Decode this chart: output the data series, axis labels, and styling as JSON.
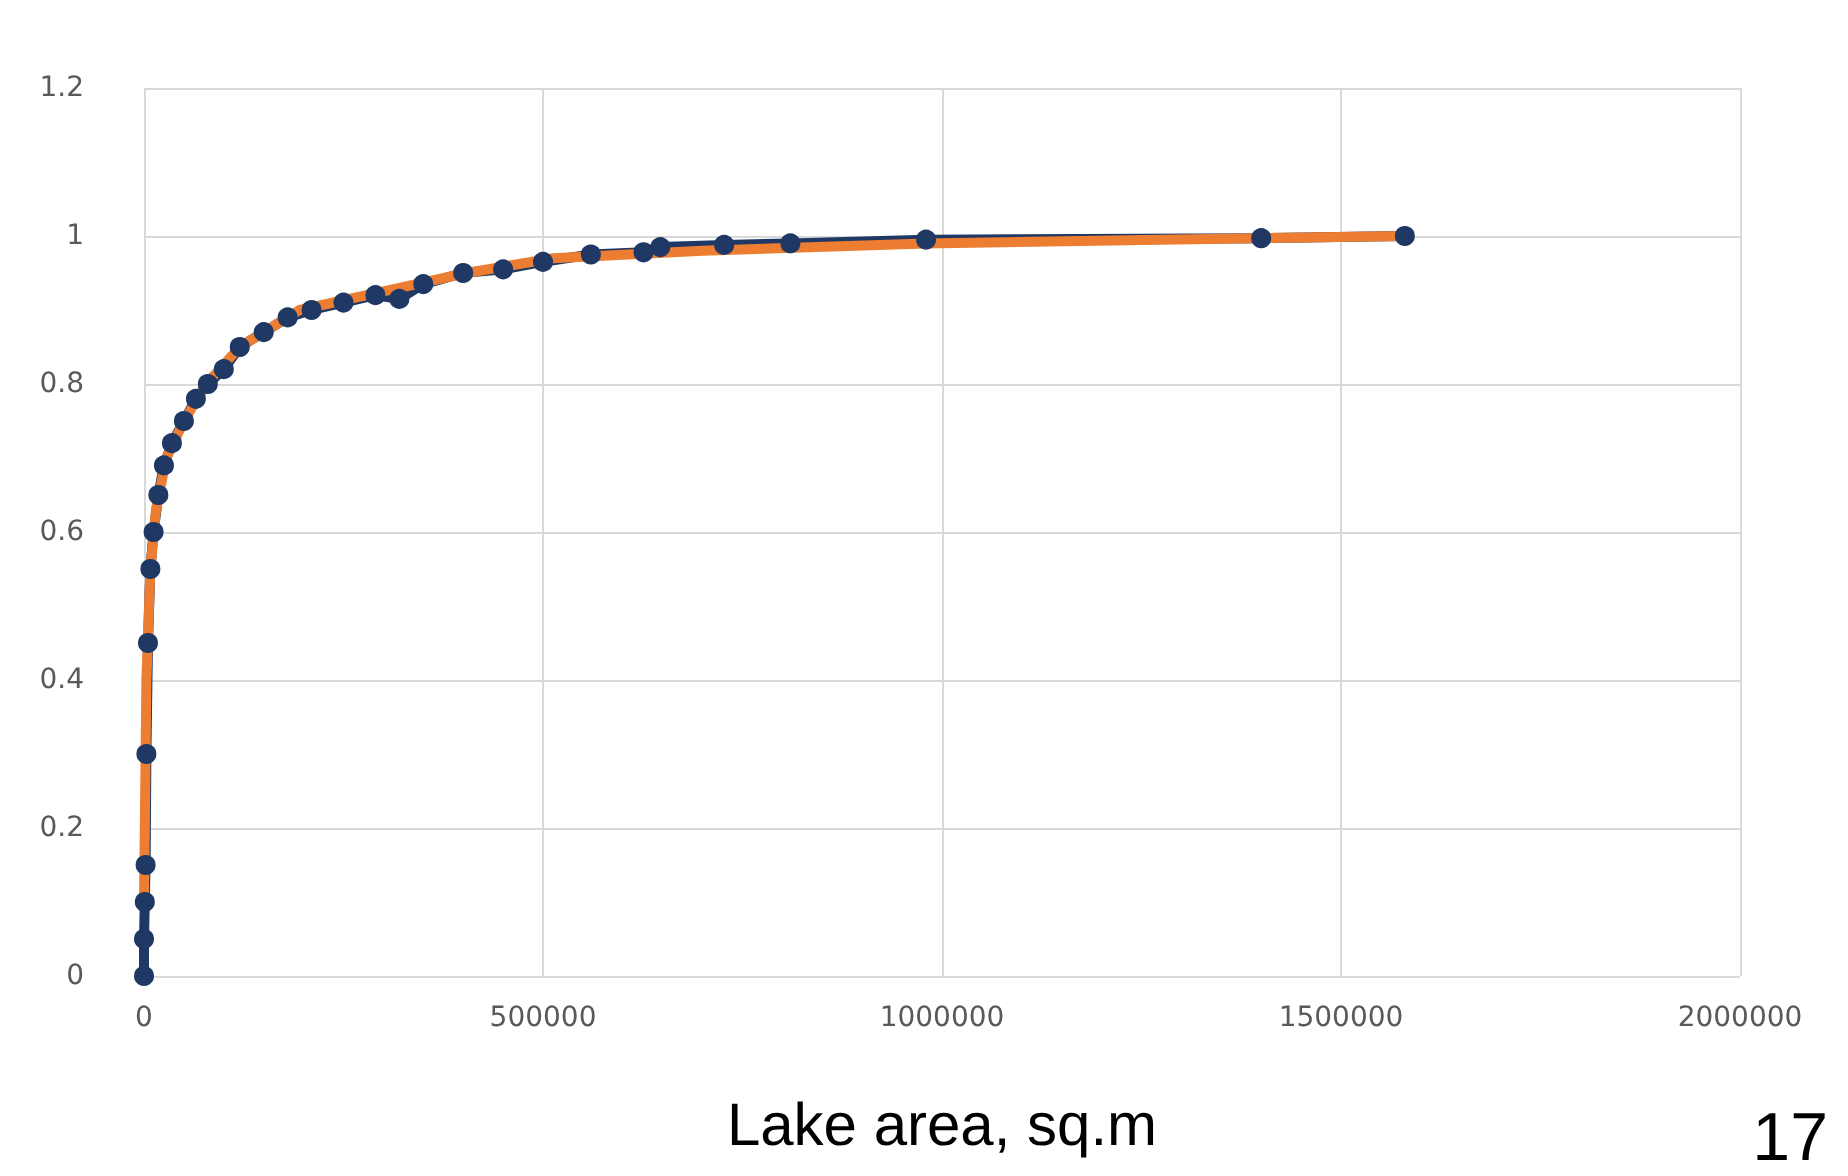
{
  "chart_data": {
    "type": "line",
    "xlabel": "Lake area, sq.m",
    "annotations": [
      "17"
    ],
    "xlim": [
      0,
      2000000
    ],
    "xticks": [
      0,
      500000,
      1000000,
      1500000,
      2000000
    ],
    "ylim": [
      0,
      1.2
    ],
    "yticks": [
      0,
      0.2,
      0.4,
      0.6,
      0.8,
      1,
      1.2
    ],
    "grid": true,
    "series": [
      {
        "color": "#1f3864",
        "marker": "circle",
        "x": [
          0,
          0,
          1000,
          2000,
          3000,
          5000,
          8000,
          12000,
          18000,
          25000,
          35000,
          50000,
          65000,
          80000,
          100000,
          120000,
          150000,
          180000,
          210000,
          250000,
          290000,
          320000,
          350000,
          400000,
          450000,
          500000,
          560000,
          626000,
          647000,
          727000,
          810000,
          980000,
          1400000,
          1580000
        ],
        "values": [
          0,
          0.05,
          0.1,
          0.15,
          0.3,
          0.45,
          0.55,
          0.6,
          0.65,
          0.69,
          0.72,
          0.75,
          0.78,
          0.8,
          0.82,
          0.85,
          0.87,
          0.89,
          0.9,
          0.91,
          0.92,
          0.915,
          0.935,
          0.95,
          0.955,
          0.965,
          0.975,
          0.978,
          0.985,
          0.988,
          0.99,
          0.995,
          0.997,
          1
        ]
      },
      {
        "color": "#ed7d31",
        "marker": "none",
        "x": [
          0,
          3000,
          8000,
          15000,
          28000,
          50000,
          78000,
          120000,
          195000,
          320000,
          404000,
          513000,
          700000,
          980000,
          1580000
        ],
        "values": [
          0.1,
          0.4,
          0.55,
          0.63,
          0.7,
          0.75,
          0.8,
          0.85,
          0.9,
          0.93,
          0.95,
          0.97,
          0.98,
          0.99,
          1
        ]
      }
    ]
  }
}
